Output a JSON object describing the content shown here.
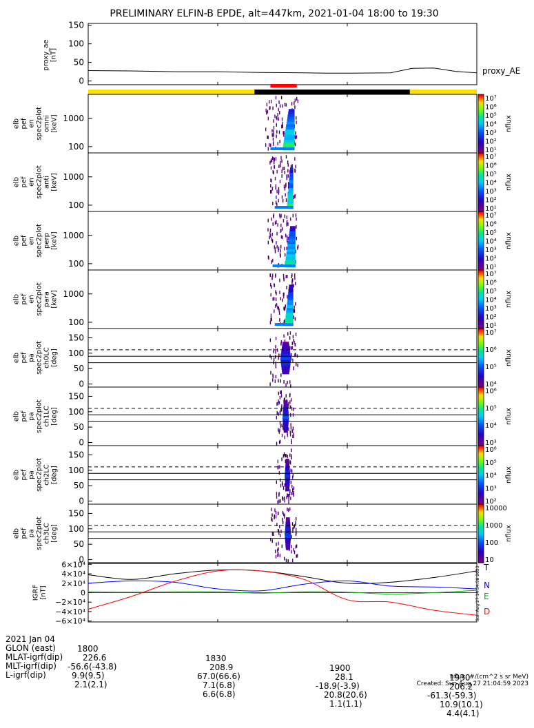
{
  "title": "PRELIMINARY ELFIN-B EPDE, alt=447km, 2021-01-04 18:00 to 19:30",
  "chart_data": [
    {
      "type": "line",
      "name": "proxy_ae",
      "ylabel": "proxy_ae\n[nT]",
      "legend": "proxy_AE",
      "ylim": [
        -10,
        155
      ],
      "yticks": [
        0,
        50,
        100,
        150
      ],
      "x_minutes": [
        0,
        10,
        20,
        30,
        40,
        50,
        55,
        60,
        70,
        75,
        80,
        85,
        90
      ],
      "values": [
        28,
        27,
        25,
        25,
        23,
        22,
        21,
        21,
        22,
        34,
        35,
        26,
        22
      ]
    },
    {
      "type": "bar",
      "name": "ephemeris-bar",
      "segments": [
        {
          "start": 0,
          "end": 38.5,
          "color": "#ffde00"
        },
        {
          "start": 38.5,
          "end": 74.5,
          "color": "#000000"
        },
        {
          "start": 74.5,
          "end": 90,
          "color": "#ffde00"
        }
      ],
      "science_zone": {
        "start": 42.2,
        "end": 48.3,
        "color": "#ff0000"
      }
    },
    {
      "type": "heatmap",
      "name": "spec-omni",
      "ylabel": "elb\npef\nen\nspec2plot\nomni\n[keV]",
      "scale": "log",
      "yticks": [
        100,
        1000
      ],
      "ylim": [
        60,
        7000
      ],
      "colorbar": {
        "label": "nflux",
        "ticks": [
          "10⁷",
          "10⁶",
          "10⁵",
          "10⁴",
          "10³",
          "10²",
          "10¹"
        ]
      },
      "activity": {
        "x_start": 41.0,
        "x_end": 48.5,
        "core_start": 45.0,
        "core_end": 47.8
      }
    },
    {
      "type": "heatmap",
      "name": "spec-anti",
      "ylabel": "elb\npef\nen\nspec2plot\nanti\n[keV]",
      "scale": "log",
      "yticks": [
        100,
        1000
      ],
      "ylim": [
        60,
        7000
      ],
      "colorbar": {
        "label": "nflux",
        "ticks": [
          "10⁷",
          "10⁶",
          "10⁵",
          "10⁴",
          "10³",
          "10²",
          "10¹"
        ]
      },
      "activity": {
        "x_start": 42.0,
        "x_end": 48.0,
        "core_start": 46.0,
        "core_end": 47.5
      }
    },
    {
      "type": "heatmap",
      "name": "spec-perp",
      "ylabel": "elb\npef\nen\nspec2plot\nperp\n[keV]",
      "scale": "log",
      "yticks": [
        100,
        1000
      ],
      "ylim": [
        60,
        7000
      ],
      "colorbar": {
        "label": "nflux",
        "ticks": [
          "10⁷",
          "10⁶",
          "10⁵",
          "10⁴",
          "10³",
          "10²",
          "10¹"
        ]
      },
      "activity": {
        "x_start": 41.5,
        "x_end": 48.5,
        "core_start": 45.5,
        "core_end": 48.0
      }
    },
    {
      "type": "heatmap",
      "name": "spec-para",
      "ylabel": "elb\npef\nen\nspec2plot\npara\n[keV]",
      "scale": "log",
      "yticks": [
        100,
        1000
      ],
      "ylim": [
        60,
        7000
      ],
      "colorbar": {
        "label": "nflux",
        "ticks": [
          "10⁷",
          "10⁶",
          "10⁵",
          "10⁴",
          "10³",
          "10²",
          "10¹"
        ]
      },
      "activity": {
        "x_start": 42.0,
        "x_end": 48.0,
        "core_start": 45.5,
        "core_end": 47.5
      }
    },
    {
      "type": "heatmap",
      "name": "pa-ch0",
      "ylabel": "elb\npef\npa\nspec2plot\nch0LC\n[deg]",
      "ylim": [
        -10,
        180
      ],
      "yticks": [
        0,
        50,
        100,
        150
      ],
      "dashed_line": 111,
      "solid_lines": [
        90,
        69
      ],
      "colorbar": {
        "label": "nflux",
        "ticks": [
          "10⁷",
          "10⁶",
          "10⁵",
          "10⁴"
        ]
      },
      "activity": {
        "x_start": 42.0,
        "x_end": 48.5,
        "core_start": 44.5,
        "core_end": 47.0
      }
    },
    {
      "type": "heatmap",
      "name": "pa-ch1",
      "ylabel": "elb\npef\npa\nspec2plot\nch1LC\n[deg]",
      "ylim": [
        -10,
        180
      ],
      "yticks": [
        0,
        50,
        100,
        150
      ],
      "dashed_line": 111,
      "solid_lines": [
        90,
        69
      ],
      "colorbar": {
        "label": "nflux",
        "ticks": [
          "10⁶",
          "10⁵",
          "10⁴",
          "10³"
        ]
      },
      "activity": {
        "x_start": 43.5,
        "x_end": 47.5,
        "core_start": 45.0,
        "core_end": 46.5
      }
    },
    {
      "type": "heatmap",
      "name": "pa-ch2",
      "ylabel": "elb\npef\npa\nspec2plot\nch2LC\n[deg]",
      "ylim": [
        -10,
        180
      ],
      "yticks": [
        0,
        50,
        100,
        150
      ],
      "dashed_line": 111,
      "solid_lines": [
        90,
        69
      ],
      "colorbar": {
        "label": "nflux",
        "ticks": [
          "10⁶",
          "10⁵",
          "10⁴",
          "10³",
          "10²"
        ]
      },
      "activity": {
        "x_start": 43.5,
        "x_end": 47.5,
        "core_start": 45.5,
        "core_end": 46.8
      }
    },
    {
      "type": "heatmap",
      "name": "pa-ch3",
      "ylabel": "elb\npef\npa\nspec2plot\nch3LC\n[deg]",
      "ylim": [
        -10,
        180
      ],
      "yticks": [
        0,
        50,
        100,
        150
      ],
      "dashed_line": 111,
      "solid_lines": [
        90,
        69
      ],
      "colorbar": {
        "label": "nflux",
        "ticks": [
          "10000",
          "1000",
          "100",
          "10"
        ]
      },
      "activity": {
        "x_start": 42.0,
        "x_end": 48.5,
        "core_start": 45.5,
        "core_end": 47.0
      }
    },
    {
      "type": "line",
      "name": "igrf",
      "ylabel": "IGRF\n[nT]",
      "ylim": [
        -62000,
        62000
      ],
      "yticks": [
        60000,
        40000,
        20000,
        0,
        -20000,
        -40000,
        -60000
      ],
      "ytick_labels": [
        "6×10⁴",
        "4×10⁴",
        "2×10⁴",
        "0",
        "−2×10⁴",
        "−4×10⁴",
        "−6×10⁴"
      ],
      "series": [
        {
          "name": "T",
          "color": "#000000",
          "x": [
            0,
            10,
            20,
            30,
            40,
            50,
            60,
            70,
            80,
            90
          ],
          "values": [
            38000,
            28000,
            40000,
            48000,
            46000,
            34000,
            20000,
            22000,
            32000,
            46000
          ]
        },
        {
          "name": "N",
          "color": "#0000ff",
          "x": [
            0,
            10,
            20,
            30,
            40,
            50,
            60,
            70,
            80,
            90
          ],
          "values": [
            20000,
            25000,
            22000,
            8000,
            4000,
            18000,
            25000,
            14000,
            12000,
            8000
          ]
        },
        {
          "name": "E",
          "color": "#00b000",
          "x": [
            0,
            10,
            20,
            30,
            40,
            50,
            60,
            70,
            80,
            90
          ],
          "values": [
            2000,
            1000,
            2000,
            2000,
            -1000,
            2000,
            1000,
            -3000,
            0,
            5000
          ]
        },
        {
          "name": "D",
          "color": "#ff0000",
          "x": [
            0,
            10,
            20,
            30,
            40,
            50,
            60,
            70,
            80,
            90
          ],
          "values": [
            -35000,
            -8000,
            24000,
            46000,
            46000,
            28000,
            -15000,
            -20000,
            -37000,
            -48000
          ]
        }
      ],
      "vertical_stamp": "Sun Aug 27 14:54:58 2023"
    }
  ],
  "x_axis": {
    "range_minutes": [
      0,
      90
    ],
    "tick_positions": [
      0,
      30,
      60,
      90
    ],
    "tick_labels": [
      "1800",
      "1830",
      "1900",
      "1930"
    ]
  },
  "footer": {
    "rows": [
      {
        "label": "2021 Jan 04",
        "values": [
          "1800",
          "1830",
          "1900",
          "1930"
        ]
      },
      {
        "label": "GLON (east)",
        "values": [
          "226.6",
          "208.9",
          "28.1",
          "206.2"
        ]
      },
      {
        "label": "MLAT-igrf(dip)",
        "values": [
          "-56.6(-43.8)",
          "67.0(66.6)",
          "-18.9(-3.9)",
          "-61.3(-59.3)"
        ]
      },
      {
        "label": "MLT-igrf(dip)",
        "values": [
          "9.9(9.5)",
          "7.1(6.8)",
          "20.8(20.6)",
          "10.9(10.1)"
        ]
      },
      {
        "label": "L-igrf(dip)",
        "values": [
          "2.1(2.1)",
          "6.6(6.8)",
          "1.1(1.1)",
          "4.4(4.1)"
        ]
      }
    ],
    "units_note": "nflux: #/(cm^2 s sr MeV)",
    "created": "Created: Sun Aug 27 21:04:59 2023"
  }
}
